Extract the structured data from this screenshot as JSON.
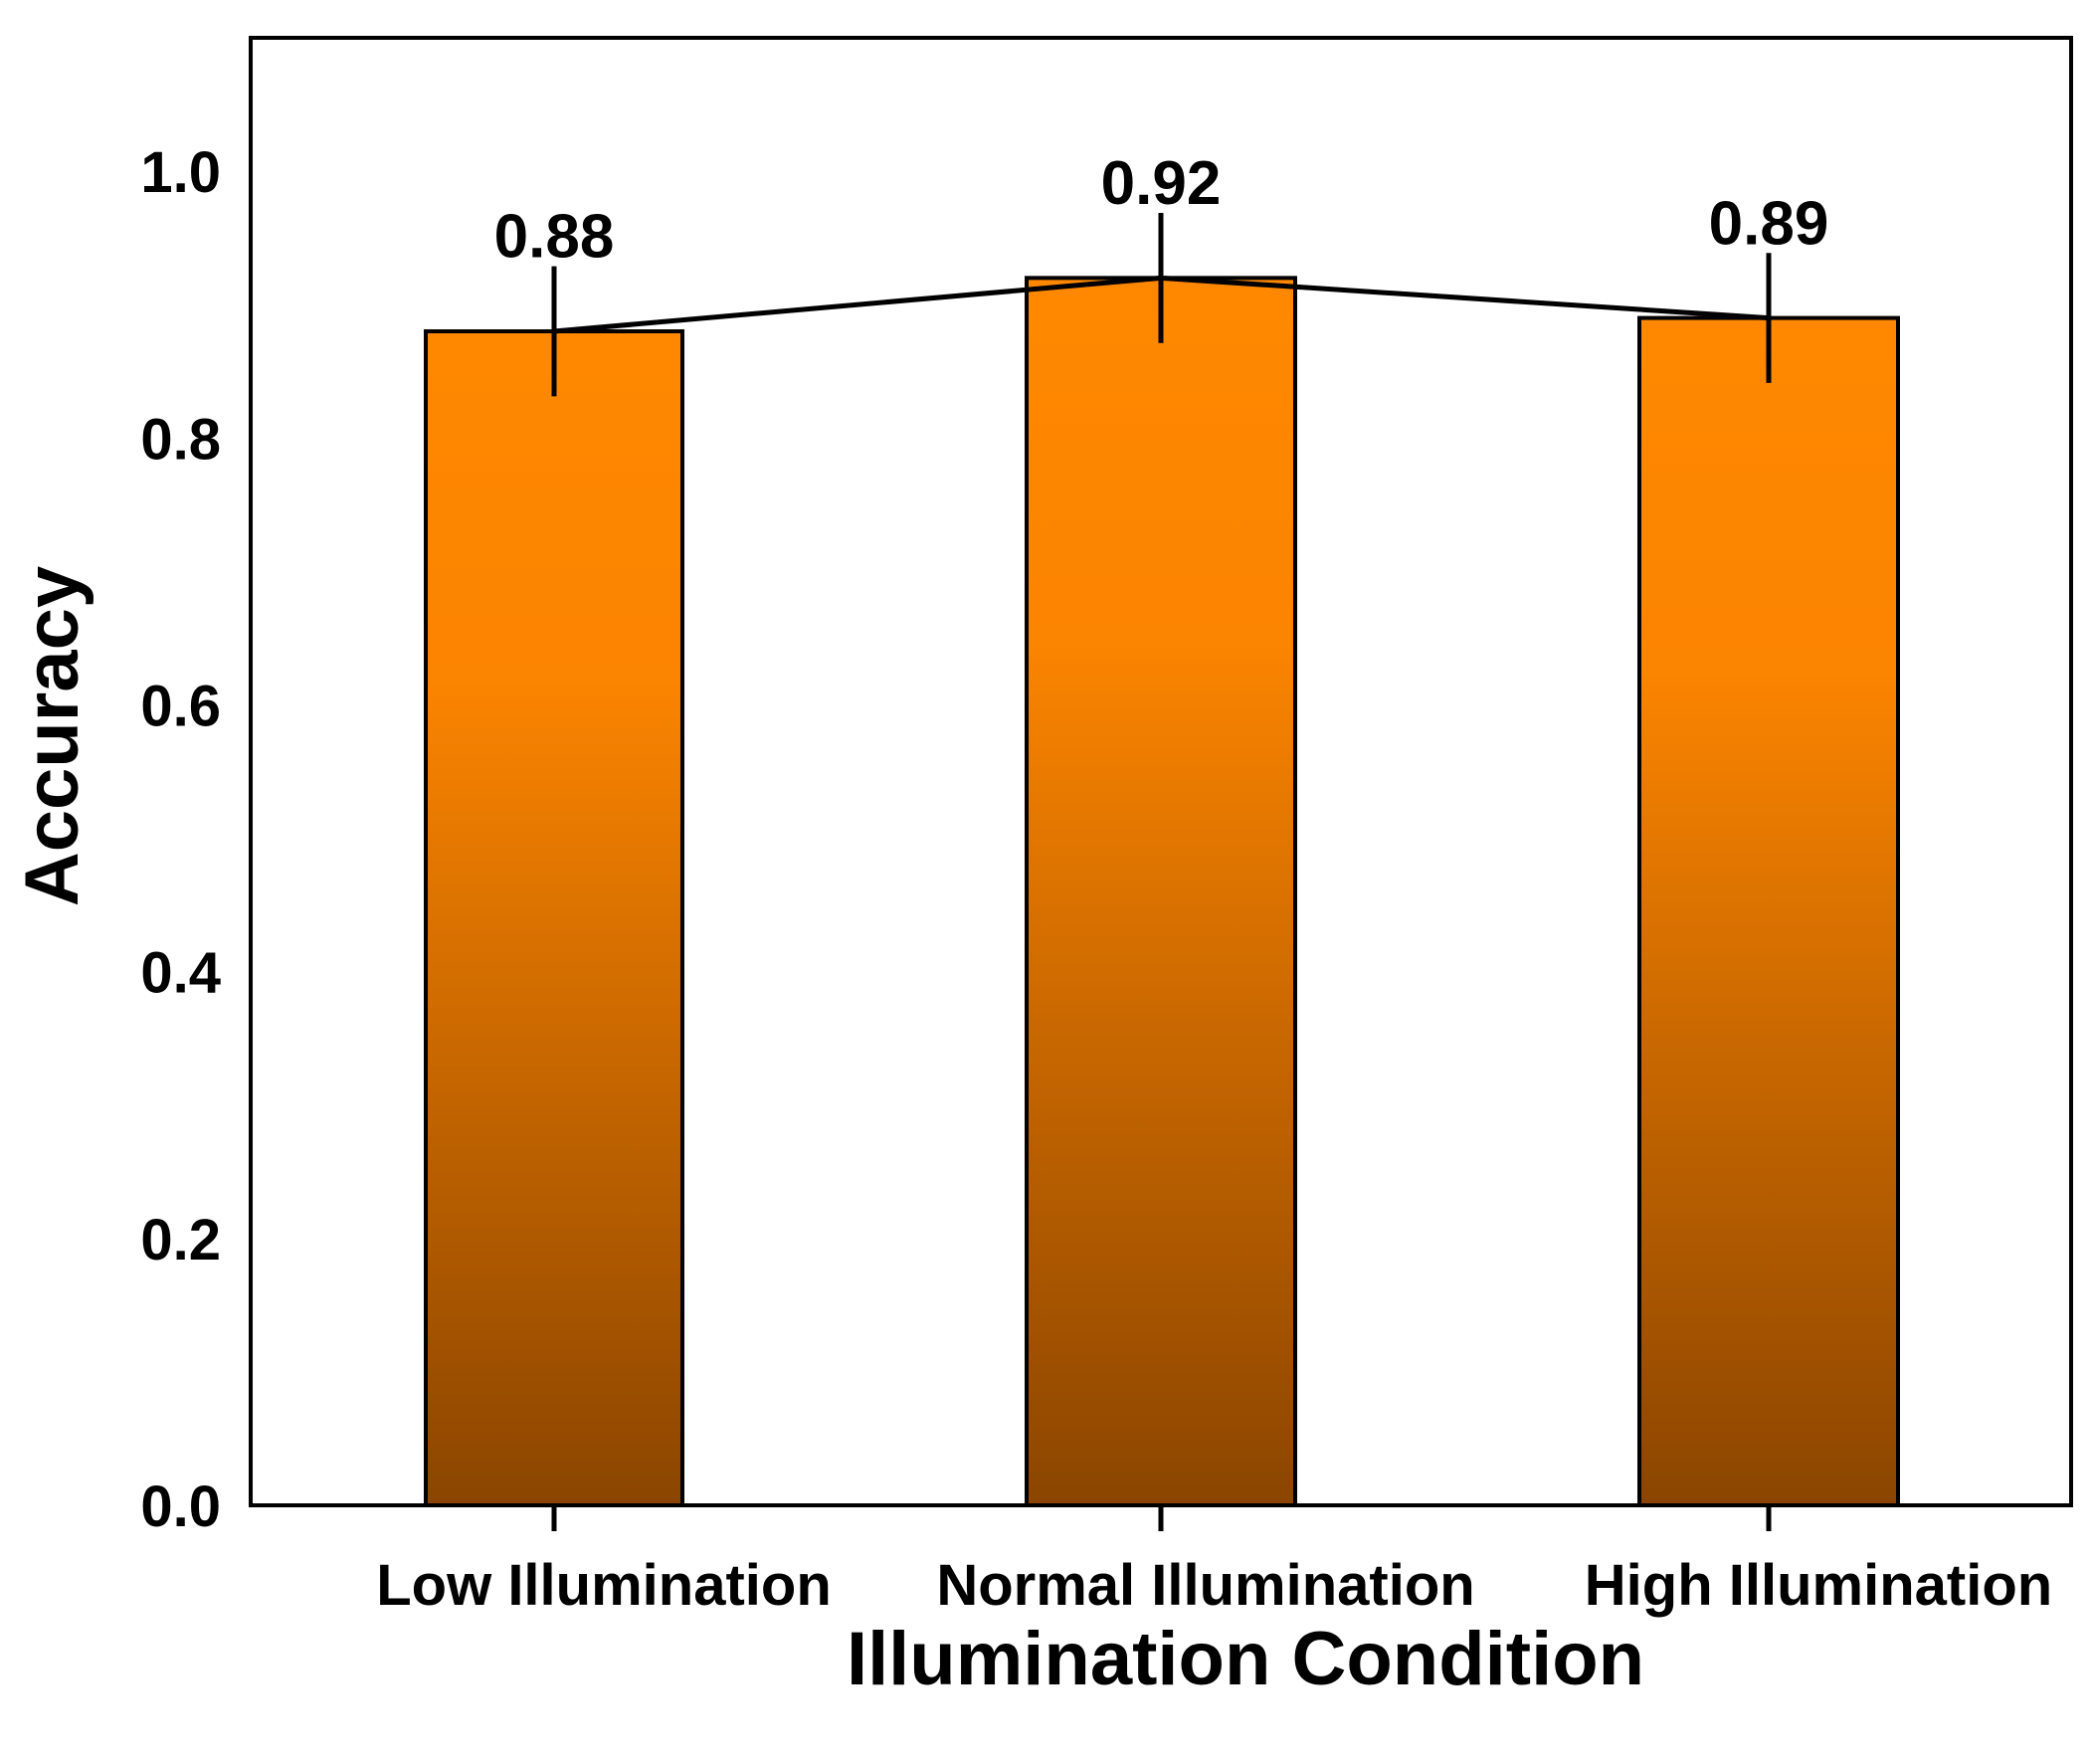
{
  "chart_data": {
    "type": "bar",
    "title": "",
    "xlabel": "Illumination Condition",
    "ylabel": "Accuracy",
    "categories": [
      "Low Illumination",
      "Normal Illumination",
      "High Illumination"
    ],
    "values": [
      0.88,
      0.92,
      0.89
    ],
    "value_labels": [
      "0.88",
      "0.92",
      "0.89"
    ],
    "error": [
      0.045,
      0.045,
      0.045
    ],
    "ylim": [
      0,
      1.1
    ],
    "yticks": [
      0.0,
      0.2,
      0.4,
      0.6,
      0.8,
      1.0
    ],
    "ytick_labels": [
      "0.0",
      "0.2",
      "0.4",
      "0.6",
      "0.8",
      "1.0"
    ],
    "connecting_line": true,
    "grid": false,
    "legend": "none",
    "colors": {
      "bar_top": "#ff8800",
      "bar_bottom": "#8b4500",
      "edge": "#000000"
    }
  }
}
